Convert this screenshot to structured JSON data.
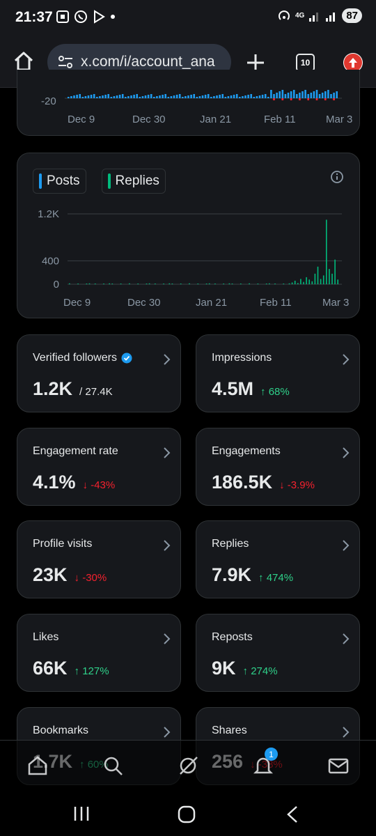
{
  "status_bar": {
    "time": "21:37",
    "network": "4G",
    "battery": "87"
  },
  "browser": {
    "url": "x.com/i/account_ana",
    "tab_count": "10",
    "icons": [
      "home-icon",
      "site-settings-icon",
      "plus-icon",
      "tabs-icon",
      "update-icon"
    ]
  },
  "top_chart": {
    "y_tick": "-20",
    "x_ticks": [
      "Dec 9",
      "Dec 30",
      "Jan 21",
      "Feb 11",
      "Mar 3"
    ]
  },
  "posts_replies_chart": {
    "legend": [
      {
        "label": "Posts",
        "color": "#1d9bf0"
      },
      {
        "label": "Replies",
        "color": "#00ba7c"
      }
    ],
    "y_ticks": [
      "1.2K",
      "400",
      "0"
    ],
    "x_ticks": [
      "Dec 9",
      "Dec 30",
      "Jan 21",
      "Feb 11",
      "Mar 3"
    ]
  },
  "chart_data": {
    "type": "bar",
    "title": "",
    "xlabel": "",
    "ylabel": "",
    "ylim": [
      0,
      1200
    ],
    "categories": [
      "Dec 9",
      "Dec 30",
      "Jan 21",
      "Feb 11",
      "Mar 3"
    ],
    "series": [
      {
        "name": "Posts",
        "values": [
          0,
          0,
          0,
          0,
          0
        ]
      },
      {
        "name": "Replies",
        "values": [
          20,
          15,
          10,
          40,
          1100
        ]
      }
    ]
  },
  "stats": [
    {
      "title": "Verified followers",
      "value": "1.2K",
      "total": "/ 27.4K",
      "change": "",
      "direction": "none",
      "verified": true
    },
    {
      "title": "Impressions",
      "value": "4.5M",
      "total": "",
      "change": "68%",
      "direction": "up"
    },
    {
      "title": "Engagement rate",
      "value": "4.1%",
      "total": "",
      "change": "-43%",
      "direction": "down"
    },
    {
      "title": "Engagements",
      "value": "186.5K",
      "total": "",
      "change": "-3.9%",
      "direction": "down"
    },
    {
      "title": "Profile visits",
      "value": "23K",
      "total": "",
      "change": "-30%",
      "direction": "down"
    },
    {
      "title": "Replies",
      "value": "7.9K",
      "total": "",
      "change": "474%",
      "direction": "up"
    },
    {
      "title": "Likes",
      "value": "66K",
      "total": "",
      "change": "127%",
      "direction": "up"
    },
    {
      "title": "Reposts",
      "value": "9K",
      "total": "",
      "change": "274%",
      "direction": "up"
    },
    {
      "title": "Bookmarks",
      "value": "1.7K",
      "total": "",
      "change": "60%",
      "direction": "up"
    },
    {
      "title": "Shares",
      "value": "256",
      "total": "",
      "change": "-38%",
      "direction": "down"
    }
  ],
  "bottom_nav": {
    "items": [
      "home-icon",
      "search-icon",
      "grok-icon",
      "notifications-icon",
      "messages-icon"
    ],
    "notification_badge": "1"
  },
  "android_nav": [
    "recents-icon",
    "home-icon",
    "back-icon"
  ]
}
